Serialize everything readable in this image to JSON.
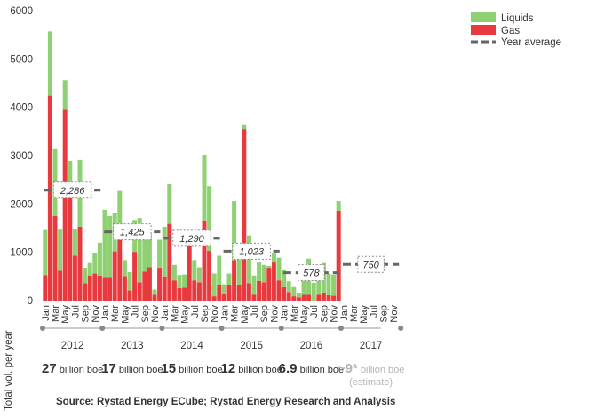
{
  "chart_data": {
    "type": "bar",
    "stacked": true,
    "ylim": [
      0,
      6000
    ],
    "yticks": [
      0,
      1000,
      2000,
      3000,
      4000,
      5000,
      6000
    ],
    "colors": {
      "gas": "#e8393e",
      "liquids": "#8fd072",
      "average": "#666666"
    },
    "legend": {
      "position": "top-right",
      "liquids": "Liquids",
      "gas": "Gas",
      "average": "Year average"
    },
    "month_labels": [
      "Jan",
      "Mar",
      "May",
      "Jul",
      "Sep",
      "Nov",
      "Jan",
      "Mar",
      "May",
      "Jul",
      "Sep",
      "Nov",
      "Jan",
      "Mar",
      "May",
      "Jul",
      "Sep",
      "Nov",
      "Jan",
      "Mar",
      "May",
      "Jul",
      "Sep",
      "Nov",
      "Jan",
      "Mar",
      "May",
      "Jul",
      "Sep",
      "Nov",
      "Jan",
      "Mar",
      "May",
      "Jul",
      "Sep",
      "Nov"
    ],
    "years": [
      "2012",
      "2013",
      "2014",
      "2015",
      "2016",
      "2017"
    ],
    "gas": [
      530,
      4240,
      1750,
      620,
      3950,
      2200,
      930,
      1530,
      360,
      520,
      560,
      520,
      470,
      470,
      1020,
      1380,
      510,
      210,
      1010,
      380,
      600,
      690,
      120,
      680,
      480,
      1590,
      420,
      260,
      270,
      1150,
      420,
      380,
      1660,
      1030,
      90,
      330,
      130,
      320,
      840,
      330,
      3550,
      360,
      120,
      410,
      380,
      680,
      790,
      420,
      280,
      180,
      90,
      70,
      120,
      120,
      0,
      120,
      160,
      110,
      100,
      1860,
      0,
      0,
      0,
      0,
      0,
      0,
      0,
      0
    ],
    "liquids": [
      930,
      1330,
      1400,
      850,
      610,
      690,
      550,
      1380,
      320,
      260,
      430,
      680,
      1410,
      1280,
      800,
      890,
      330,
      380,
      660,
      1330,
      750,
      700,
      110,
      580,
      1050,
      820,
      320,
      270,
      270,
      0,
      420,
      310,
      1360,
      1340,
      470,
      600,
      210,
      240,
      1220,
      620,
      100,
      990,
      400,
      380,
      360,
      40,
      200,
      470,
      350,
      220,
      190,
      80,
      350,
      750,
      370,
      330,
      620,
      450,
      440,
      200,
      0,
      0,
      0,
      0,
      0,
      0,
      0,
      0
    ],
    "year_average": [
      {
        "year": "2012",
        "value": 2286,
        "label": "2,286"
      },
      {
        "year": "2013",
        "value": 1425,
        "label": "1,425"
      },
      {
        "year": "2014",
        "value": 1290,
        "label": "1,290"
      },
      {
        "year": "2015",
        "value": 1023,
        "label": "1,023"
      },
      {
        "year": "2016",
        "value": 578,
        "label": "578"
      },
      {
        "year": "2017",
        "value": 750,
        "label": "750",
        "estimate": true
      }
    ]
  },
  "totals": {
    "header": "Total vol. per year",
    "items": [
      {
        "value": "27",
        "unit": "billion boe"
      },
      {
        "value": "17",
        "unit": "billion boe"
      },
      {
        "value": "15",
        "unit": "billion boe"
      },
      {
        "value": "12",
        "unit": "billion boe"
      },
      {
        "value": "6.9",
        "unit": "billion boe"
      },
      {
        "value": "~9*",
        "unit": "billion boe (estimate)",
        "estimate": true
      }
    ]
  },
  "source": "Source: Rystad Energy ECube; Rystad Energy Research and Analysis"
}
